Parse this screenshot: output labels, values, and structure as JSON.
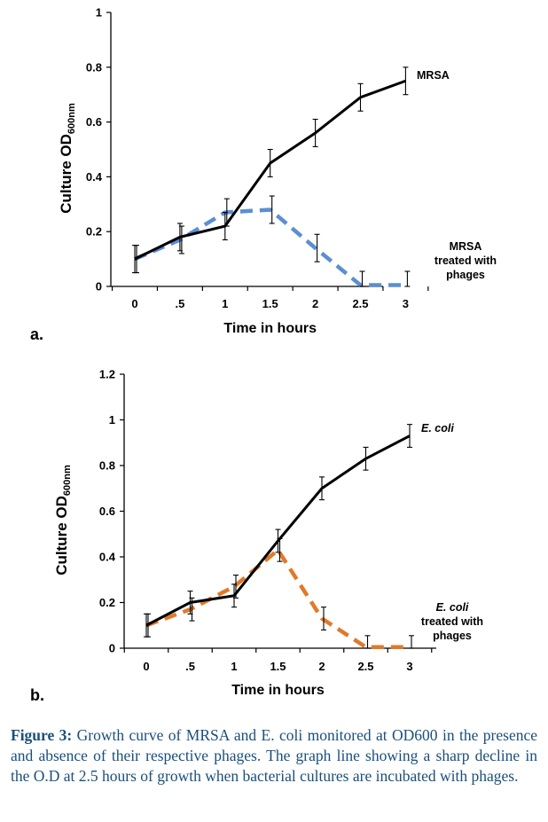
{
  "chart_data": [
    {
      "type": "line",
      "panel_label": "a.",
      "xlabel": "Time in hours",
      "ylabel_main": "Culture OD",
      "ylabel_sub": "600nm",
      "x": [
        0,
        0.5,
        1,
        1.5,
        2,
        2.5,
        3
      ],
      "x_tick_labels": [
        "0",
        ".5",
        "1",
        "1.5",
        "2",
        "2.5",
        "3"
      ],
      "y_ticks": [
        0,
        0.2,
        0.4,
        0.6,
        0.8,
        1
      ],
      "y_tick_labels": [
        "0",
        "0.2",
        "0.4",
        "0.6",
        "0.8",
        "1"
      ],
      "ylim": [
        0,
        1
      ],
      "series": [
        {
          "name": "MRSA",
          "values": [
            0.1,
            0.18,
            0.22,
            0.45,
            0.56,
            0.69,
            0.75
          ],
          "error": [
            0.05,
            0.05,
            0.05,
            0.05,
            0.05,
            0.05,
            0.05
          ],
          "color": "#000000",
          "dash": "solid"
        },
        {
          "name": "MRSA treated with phages",
          "values": [
            0.1,
            0.17,
            0.27,
            0.28,
            0.14,
            0.005,
            0.005
          ],
          "error": [
            0.05,
            0.05,
            0.05,
            0.05,
            0.05,
            0.05,
            0.05
          ],
          "color": "#5b8fd1",
          "dash": "dashed"
        }
      ],
      "annotations": {
        "top": [
          "MRSA"
        ],
        "bottom": [
          "MRSA",
          "treated with",
          "phages"
        ]
      }
    },
    {
      "type": "line",
      "panel_label": "b.",
      "xlabel": "Time in hours",
      "ylabel_main": "Culture OD",
      "ylabel_sub": "600nm",
      "x": [
        0,
        0.5,
        1,
        1.5,
        2,
        2.5,
        3
      ],
      "x_tick_labels": [
        "0",
        ".5",
        "1",
        "1.5",
        "2",
        "2.5",
        "3"
      ],
      "y_ticks": [
        0,
        0.2,
        0.4,
        0.6,
        0.8,
        1,
        1.2
      ],
      "y_tick_labels": [
        "0",
        "0.2",
        "0.4",
        "0.6",
        "0.8",
        "1",
        "1.2"
      ],
      "ylim": [
        0,
        1.2
      ],
      "series": [
        {
          "name": "E. coli",
          "values": [
            0.1,
            0.2,
            0.23,
            0.47,
            0.7,
            0.83,
            0.93
          ],
          "error": [
            0.05,
            0.05,
            0.05,
            0.05,
            0.05,
            0.05,
            0.05
          ],
          "color": "#000000",
          "dash": "solid"
        },
        {
          "name": "E. coli treated with phages",
          "values": [
            0.1,
            0.17,
            0.27,
            0.43,
            0.13,
            0.005,
            0.005
          ],
          "error": [
            0.05,
            0.05,
            0.05,
            0.05,
            0.05,
            0.05,
            0.05
          ],
          "color": "#e07a2a",
          "dash": "dashed"
        }
      ],
      "annotations": {
        "top": [
          "E. coli"
        ],
        "bottom": [
          "E. coli",
          "treated with",
          "phages"
        ],
        "italic_first_line": true
      }
    }
  ],
  "caption": {
    "label": "Figure 3:",
    "text": " Growth curve of MRSA and E. coli monitored at OD600 in the presence and absence of their respective phages. The graph line showing a sharp decline in the O.D at 2.5 hours of growth when bacterial cultures are incubated with phages."
  }
}
